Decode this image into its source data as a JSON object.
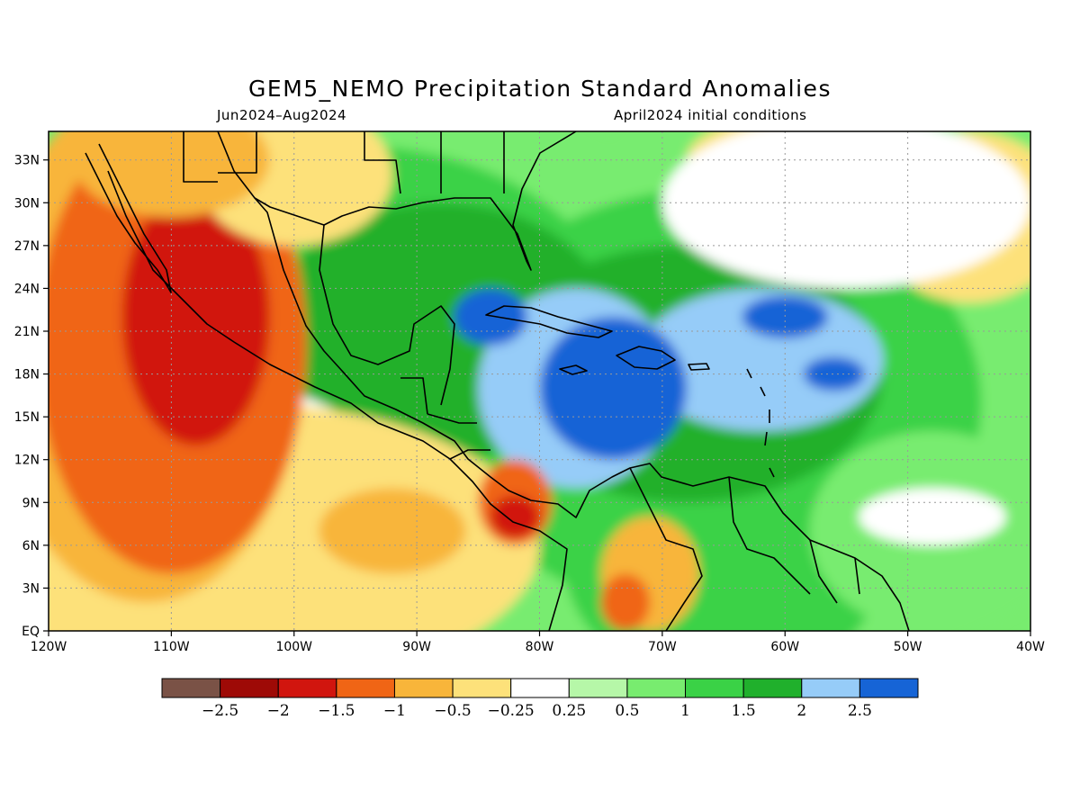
{
  "figure": {
    "title": "GEM5_NEMO Precipitation Standard Anomalies",
    "period": "Jun2024–Aug2024",
    "initial_conditions": "April2024 initial conditions"
  },
  "axes": {
    "lon_range": [
      -120,
      -40
    ],
    "lat_range": [
      0,
      35
    ],
    "lon_ticks": [
      {
        "value": -120,
        "label": "120W"
      },
      {
        "value": -110,
        "label": "110W"
      },
      {
        "value": -100,
        "label": "100W"
      },
      {
        "value": -90,
        "label": "90W"
      },
      {
        "value": -80,
        "label": "80W"
      },
      {
        "value": -70,
        "label": "70W"
      },
      {
        "value": -60,
        "label": "60W"
      },
      {
        "value": -50,
        "label": "50W"
      },
      {
        "value": -40,
        "label": "40W"
      }
    ],
    "lat_ticks": [
      {
        "value": 0,
        "label": "EQ"
      },
      {
        "value": 3,
        "label": "3N"
      },
      {
        "value": 6,
        "label": "6N"
      },
      {
        "value": 9,
        "label": "9N"
      },
      {
        "value": 12,
        "label": "12N"
      },
      {
        "value": 15,
        "label": "15N"
      },
      {
        "value": 18,
        "label": "18N"
      },
      {
        "value": 21,
        "label": "21N"
      },
      {
        "value": 24,
        "label": "24N"
      },
      {
        "value": 27,
        "label": "27N"
      },
      {
        "value": 30,
        "label": "30N"
      },
      {
        "value": 33,
        "label": "33N"
      }
    ],
    "grid": true
  },
  "colorbar": {
    "colors": [
      "#7a5246",
      "#9e0a06",
      "#d1150e",
      "#f06515",
      "#f8b53a",
      "#fde17a",
      "#ffffff",
      "#b6f7a8",
      "#78ec6f",
      "#3ad246",
      "#20b02c",
      "#96ccf8",
      "#1664d6"
    ],
    "labels": [
      "−2.5",
      "−2",
      "−1.5",
      "−1",
      "−0.5",
      "−0.25",
      "0.25",
      "0.5",
      "1",
      "1.5",
      "2",
      "2.5"
    ]
  },
  "anomaly_regions": [
    {
      "level": 0.5,
      "lon": -95,
      "lat": 17,
      "rx": 35,
      "ry": 22
    },
    {
      "level": 0.5,
      "lon": -55,
      "lat": 20,
      "rx": 26,
      "ry": 22
    },
    {
      "level": 1,
      "lon": -95,
      "lat": 20,
      "rx": 22,
      "ry": 14
    },
    {
      "level": 1,
      "lon": -66,
      "lat": 16,
      "rx": 22,
      "ry": 15
    },
    {
      "level": 1,
      "lon": -65,
      "lat": 5,
      "rx": 13,
      "ry": 9
    },
    {
      "level": 1.5,
      "lon": -88,
      "lat": 21,
      "rx": 14,
      "ry": 9
    },
    {
      "level": 1.5,
      "lon": -68,
      "lat": 18,
      "rx": 16,
      "ry": 9
    },
    {
      "level": 2,
      "lon": -77,
      "lat": 17,
      "rx": 8,
      "ry": 7
    },
    {
      "level": 2,
      "lon": -62,
      "lat": 19,
      "rx": 10,
      "ry": 5
    },
    {
      "level": 2.5,
      "lon": -74,
      "lat": 17,
      "rx": 6,
      "ry": 5
    },
    {
      "level": 2.5,
      "lon": -84,
      "lat": 22,
      "rx": 3,
      "ry": 2
    },
    {
      "level": 2.5,
      "lon": -56,
      "lat": 18,
      "rx": 2.5,
      "ry": 1.2
    },
    {
      "level": 2.5,
      "lon": -60,
      "lat": 22,
      "rx": 3.5,
      "ry": 1.5
    },
    {
      "level": 0.5,
      "lon": -48,
      "lat": 7,
      "rx": 10,
      "ry": 7
    },
    {
      "level": -0.25,
      "lon": -110,
      "lat": 8,
      "rx": 20,
      "ry": 10
    },
    {
      "level": -0.5,
      "lon": -105,
      "lat": 6,
      "rx": 25,
      "ry": 10
    },
    {
      "level": -1,
      "lon": -112,
      "lat": 20,
      "rx": 13,
      "ry": 18
    },
    {
      "level": -1,
      "lon": -92,
      "lat": 7,
      "rx": 6,
      "ry": 3
    },
    {
      "level": -1.5,
      "lon": -110,
      "lat": 20,
      "rx": 11,
      "ry": 16
    },
    {
      "level": -2,
      "lon": -108,
      "lat": 22,
      "rx": 6,
      "ry": 9
    },
    {
      "level": -0.5,
      "lon": -100,
      "lat": 32,
      "rx": 8,
      "ry": 5
    },
    {
      "level": -1,
      "lon": -110,
      "lat": 33,
      "rx": 8,
      "ry": 4
    },
    {
      "level": -1.5,
      "lon": -82,
      "lat": 9,
      "rx": 3,
      "ry": 3
    },
    {
      "level": -2,
      "lon": -82,
      "lat": 8,
      "rx": 2,
      "ry": 1.5
    },
    {
      "level": -1,
      "lon": -71,
      "lat": 4,
      "rx": 4,
      "ry": 4
    },
    {
      "level": -1.5,
      "lon": -73,
      "lat": 2,
      "rx": 2,
      "ry": 2
    },
    {
      "level": -0.5,
      "lon": -45,
      "lat": 29,
      "rx": 8,
      "ry": 6
    },
    {
      "level": -0.5,
      "lon": -60,
      "lat": 33,
      "rx": 8,
      "ry": 3
    },
    {
      "level": -0.25,
      "lon": -55,
      "lat": 30,
      "rx": 15,
      "ry": 6
    },
    {
      "level": -0.25,
      "lon": -48,
      "lat": 8,
      "rx": 6,
      "ry": 2
    }
  ]
}
